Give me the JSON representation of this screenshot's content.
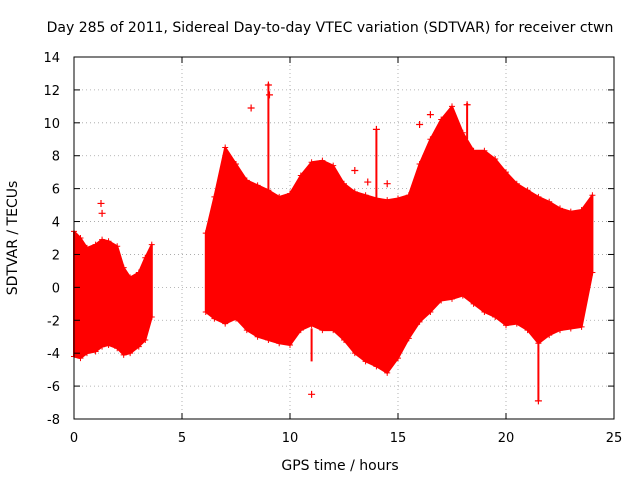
{
  "chart_data": {
    "type": "scatter",
    "title": "Day 285 of 2011, Sidereal Day-to-day VTEC variation (SDTVAR) for receiver ctwn",
    "xlabel": "GPS time / hours",
    "ylabel": "SDTVAR / TECUs",
    "xlim": [
      0,
      25
    ],
    "ylim": [
      -8,
      14
    ],
    "xticks": [
      0,
      5,
      10,
      15,
      20,
      25
    ],
    "yticks": [
      -8,
      -6,
      -4,
      -2,
      0,
      2,
      4,
      6,
      8,
      10,
      12,
      14
    ],
    "grid": true,
    "color": "#ff0000",
    "series": [
      {
        "name": "SDTVAR",
        "segments": [
          {
            "x": [
              0.0,
              0.3,
              0.6,
              1.0,
              1.3,
              1.6,
              2.0,
              2.3,
              2.6,
              3.0,
              3.3,
              3.6
            ],
            "upper": [
              3.4,
              3.0,
              2.4,
              2.6,
              2.9,
              2.8,
              2.5,
              1.2,
              0.6,
              0.9,
              1.8,
              2.6
            ],
            "lower": [
              -4.2,
              -4.3,
              -4.0,
              -3.9,
              -3.6,
              -3.5,
              -3.7,
              -4.1,
              -4.0,
              -3.6,
              -3.2,
              -1.8
            ]
          },
          {
            "x": [
              6.1,
              6.5,
              7.0,
              7.5,
              8.0,
              8.5,
              9.0,
              9.5,
              10.0,
              10.5,
              11.0,
              11.5,
              12.0,
              12.5,
              13.0,
              13.5,
              14.0,
              14.5,
              15.0,
              15.5,
              16.0,
              16.5,
              17.0,
              17.5,
              18.0,
              18.5,
              19.0,
              19.5,
              20.0,
              20.5,
              21.0,
              21.5,
              22.0,
              22.5,
              23.0,
              23.5,
              24.0
            ],
            "upper": [
              3.3,
              5.5,
              8.5,
              7.5,
              6.5,
              6.2,
              5.9,
              5.5,
              5.7,
              6.8,
              7.6,
              7.7,
              7.4,
              6.3,
              5.8,
              5.6,
              5.4,
              5.3,
              5.4,
              5.6,
              7.5,
              9.0,
              10.2,
              11.0,
              9.4,
              8.3,
              8.3,
              7.8,
              7.0,
              6.3,
              5.9,
              5.5,
              5.2,
              4.8,
              4.6,
              4.7,
              5.6
            ],
            "lower": [
              -1.5,
              -1.9,
              -2.2,
              -1.9,
              -2.6,
              -3.0,
              -3.2,
              -3.4,
              -3.5,
              -2.6,
              -2.3,
              -2.6,
              -2.6,
              -3.2,
              -4.0,
              -4.5,
              -4.8,
              -5.2,
              -4.3,
              -3.1,
              -2.1,
              -1.5,
              -0.8,
              -0.7,
              -0.5,
              -1.0,
              -1.5,
              -1.8,
              -2.3,
              -2.2,
              -2.6,
              -3.4,
              -2.9,
              -2.6,
              -2.5,
              -2.4,
              0.9
            ]
          }
        ],
        "outliers": [
          {
            "x": 1.25,
            "y": 5.1
          },
          {
            "x": 1.3,
            "y": 4.5
          },
          {
            "x": 8.2,
            "y": 10.9
          },
          {
            "x": 9.0,
            "y": 12.3
          },
          {
            "x": 9.05,
            "y": 11.7
          },
          {
            "x": 11.0,
            "y": -6.5
          },
          {
            "x": 13.0,
            "y": 7.1
          },
          {
            "x": 13.6,
            "y": 6.4
          },
          {
            "x": 14.0,
            "y": 9.6
          },
          {
            "x": 14.5,
            "y": 6.3
          },
          {
            "x": 16.0,
            "y": 9.9
          },
          {
            "x": 16.5,
            "y": 10.5
          },
          {
            "x": 18.2,
            "y": 11.1
          },
          {
            "x": 21.5,
            "y": -6.9
          }
        ],
        "spikes": [
          {
            "x": 9.0,
            "from": 5.9,
            "to": 12.4
          },
          {
            "x": 11.0,
            "from": -2.5,
            "to": -4.5
          },
          {
            "x": 14.0,
            "from": 5.4,
            "to": 9.6
          },
          {
            "x": 18.2,
            "from": 9.0,
            "to": 11.2
          },
          {
            "x": 21.5,
            "from": -3.0,
            "to": -6.9
          }
        ]
      }
    ]
  }
}
